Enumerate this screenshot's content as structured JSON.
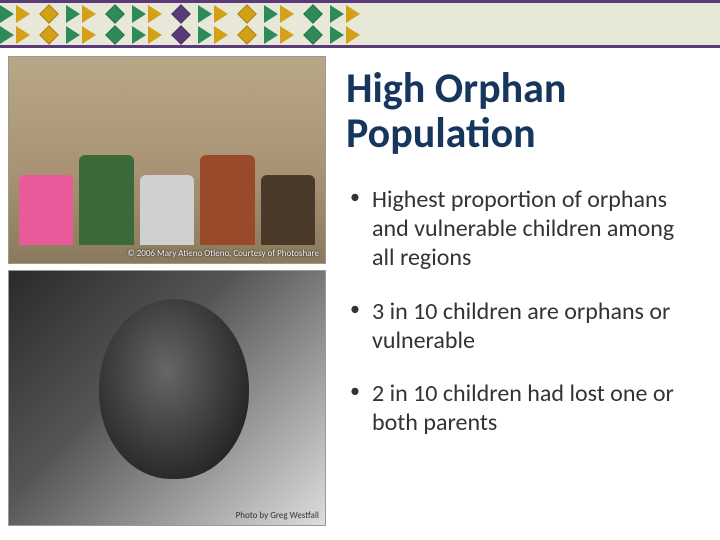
{
  "border": {
    "bg": "#e8e8d8",
    "line": "#5b3a7a",
    "tri_colors": [
      "#2e8b57",
      "#d4a017",
      "#2e8b57",
      "#d4a017",
      "#2e8b57",
      "#d4a017",
      "#2e8b57",
      "#d4a017",
      "#2e8b57",
      "#d4a017",
      "#2e8b57",
      "#d4a017"
    ],
    "diamond_colors": [
      "#d4a017",
      "#2e8b57",
      "#5b3a7a",
      "#d4a017",
      "#2e8b57",
      "#5b3a7a",
      "#d4a017"
    ]
  },
  "photos": {
    "top": {
      "credit": "© 2006 Mary Atieno Otieno, Courtesy of Photoshare",
      "kid_colors": [
        "#e85a9a",
        "#3a6a3a",
        "#d0d0d0",
        "#9a4a2a",
        "#4a3a2a"
      ]
    },
    "bottom": {
      "credit": "Photo by Greg Westfall"
    }
  },
  "title": "High Orphan Population",
  "title_color": "#17365d",
  "bullet_color": "#333333",
  "bullets": [
    "Highest proportion of orphans and vulnerable children among all regions",
    "3 in 10 children are orphans or vulnerable",
    "2 in 10 children had lost one or both parents"
  ]
}
